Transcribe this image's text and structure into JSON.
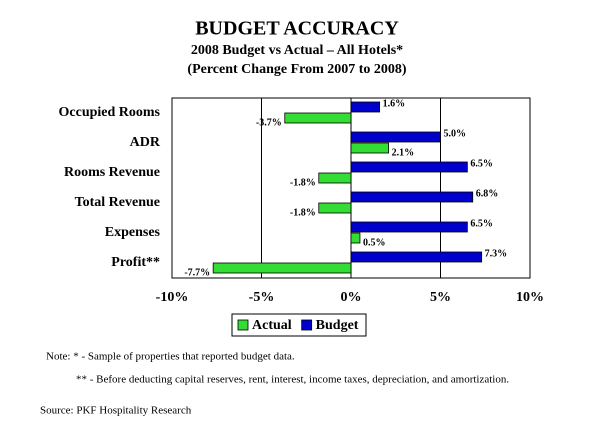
{
  "chart_data": {
    "type": "hbar",
    "title": "BUDGET ACCURACY",
    "subtitle": [
      "2008 Budget vs Actual – All Hotels*",
      "(Percent Change From 2007 to 2008)"
    ],
    "categories": [
      "Occupied Rooms",
      "ADR",
      "Rooms Revenue",
      "Total Revenue",
      "Expenses",
      "Profit**"
    ],
    "series": [
      {
        "name": "Actual",
        "color": "#33dd33",
        "values": [
          -3.7,
          2.1,
          -1.8,
          -1.8,
          0.5,
          -7.7
        ],
        "value_labels": [
          "-3.7%",
          "2.1%",
          "-1.8%",
          "-1.8%",
          "0.5%",
          "-7.7%"
        ]
      },
      {
        "name": "Budget",
        "color": "#0000cc",
        "values": [
          1.6,
          5.0,
          6.5,
          6.8,
          6.5,
          7.3
        ],
        "value_labels": [
          "1.6%",
          "5.0%",
          "6.5%",
          "6.8%",
          "6.5%",
          "7.3%"
        ]
      }
    ],
    "xlim": [
      -10,
      10
    ],
    "xticks": [
      {
        "value": -10,
        "label": "-10%"
      },
      {
        "value": -5,
        "label": "-5%"
      },
      {
        "value": 0,
        "label": "0%"
      },
      {
        "value": 5,
        "label": "5%"
      },
      {
        "value": 10,
        "label": "10%"
      }
    ],
    "grid": true,
    "legend": "bottom",
    "notes": [
      "Note: * - Sample of properties that reported budget data.",
      "** - Before deducting capital reserves, rent, interest, income taxes, depreciation, and amortization."
    ],
    "source": "Source: PKF Hospitality Research"
  }
}
